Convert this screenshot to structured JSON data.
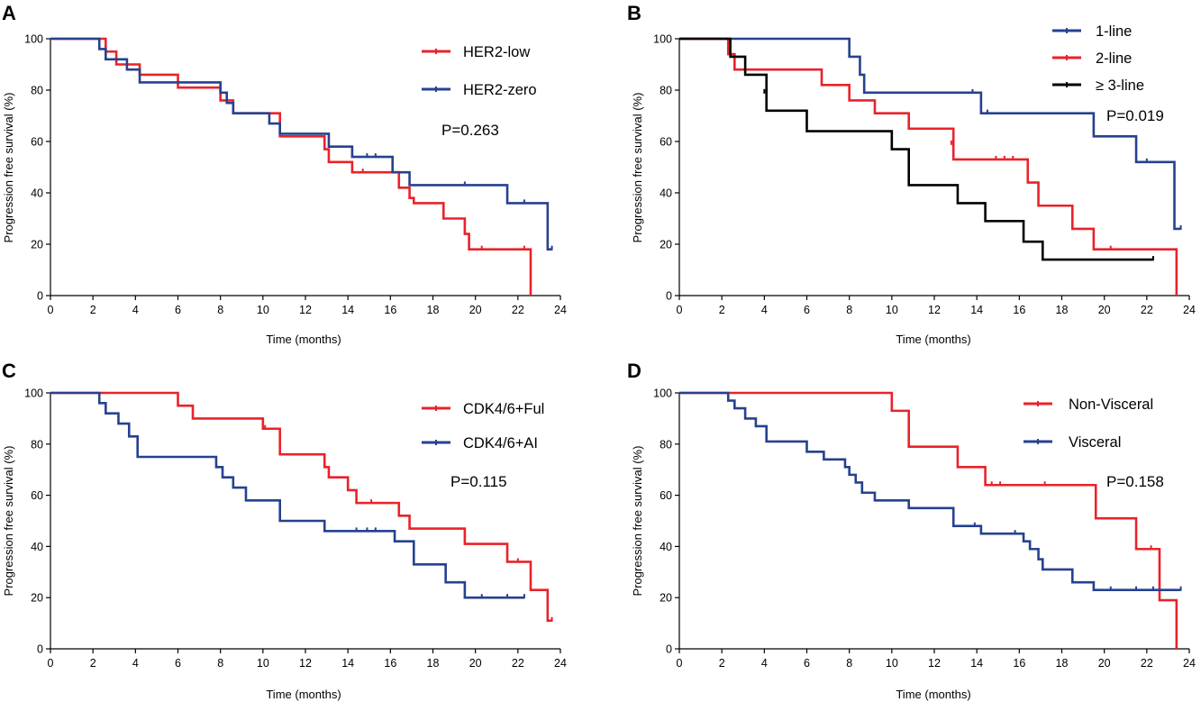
{
  "colors": {
    "red": "#e8232a",
    "blue": "#26418f",
    "black": "#000000"
  },
  "chart_data": [
    {
      "panel": "A",
      "type": "line",
      "xlabel": "Time (months)",
      "ylabel": "Progression free survival (%)",
      "xlim": [
        0,
        24
      ],
      "ylim": [
        0,
        100
      ],
      "xticks": [
        0,
        2,
        4,
        6,
        8,
        10,
        12,
        14,
        16,
        18,
        20,
        22,
        24
      ],
      "yticks": [
        0,
        20,
        40,
        60,
        80,
        100
      ],
      "pvalue": "P=0.263",
      "series": [
        {
          "name": "HER2-low",
          "color": "red",
          "x": [
            0,
            2.6,
            3.1,
            4.2,
            6.0,
            6.8,
            8.0,
            8.6,
            9.2,
            10.8,
            12.9,
            13.1,
            14.2,
            16.4,
            16.9,
            17.1,
            18.5,
            19.5,
            19.7,
            22.6
          ],
          "y": [
            100,
            95,
            90,
            86,
            81,
            81,
            76,
            71,
            71,
            62,
            57,
            52,
            48,
            42,
            38,
            36,
            30,
            24,
            18,
            0
          ],
          "censored": [
            [
              14.7,
              48
            ],
            [
              20.3,
              18
            ],
            [
              22.3,
              18
            ]
          ]
        },
        {
          "name": "HER2-zero",
          "color": "blue",
          "x": [
            0,
            2.3,
            2.6,
            3.6,
            4.2,
            7.8,
            8.0,
            8.3,
            8.6,
            10.3,
            10.8,
            13.1,
            14.2,
            16.1,
            16.9,
            21.5,
            23.4
          ],
          "y": [
            100,
            96,
            92,
            88,
            83,
            83,
            79,
            75,
            71,
            67,
            63,
            58,
            54,
            48,
            43,
            36,
            18
          ],
          "censored": [
            [
              14.9,
              54
            ],
            [
              15.3,
              54
            ],
            [
              19.5,
              43
            ],
            [
              22.3,
              36
            ],
            [
              23.6,
              18
            ]
          ]
        }
      ]
    },
    {
      "panel": "B",
      "type": "line",
      "xlabel": "Time (months)",
      "ylabel": "Progression free survival (%)",
      "xlim": [
        0,
        24
      ],
      "ylim": [
        0,
        100
      ],
      "xticks": [
        0,
        2,
        4,
        6,
        8,
        10,
        12,
        14,
        16,
        18,
        20,
        22,
        24
      ],
      "yticks": [
        0,
        20,
        40,
        60,
        80,
        100
      ],
      "pvalue": "P=0.019",
      "series": [
        {
          "name": "1-line",
          "color": "blue",
          "x": [
            0,
            8.0,
            8.5,
            8.7,
            14.2,
            19.5,
            21.5,
            22.6,
            23.3
          ],
          "y": [
            100,
            93,
            86,
            79,
            71,
            62,
            52,
            52,
            26
          ],
          "censored": [
            [
              13.8,
              79
            ],
            [
              14.5,
              71
            ],
            [
              22.0,
              52
            ],
            [
              23.6,
              26
            ]
          ]
        },
        {
          "name": "2-line",
          "color": "red",
          "x": [
            0,
            2.3,
            2.6,
            6.7,
            8.0,
            9.2,
            10.8,
            12.9,
            16.4,
            16.9,
            18.5,
            19.5,
            23.4
          ],
          "y": [
            100,
            94,
            88,
            82,
            76,
            71,
            65,
            53,
            44,
            35,
            26,
            18,
            0
          ],
          "censored": [
            [
              12.8,
              59
            ],
            [
              14.9,
              53
            ],
            [
              15.3,
              53
            ],
            [
              15.7,
              53
            ],
            [
              20.3,
              18
            ]
          ]
        },
        {
          "name": "≥ 3-line",
          "color": "black",
          "x": [
            0,
            2.4,
            2.6,
            3.1,
            4.1,
            6.0,
            10.0,
            10.8,
            13.1,
            14.4,
            16.2,
            17.1
          ],
          "y": [
            100,
            93,
            93,
            86,
            72,
            64,
            57,
            43,
            36,
            29,
            21,
            14
          ],
          "censored": [
            [
              4.0,
              79
            ],
            [
              22.3,
              14
            ]
          ]
        }
      ]
    },
    {
      "panel": "C",
      "type": "line",
      "xlabel": "Time (months)",
      "ylabel": "Progression free survival (%)",
      "xlim": [
        0,
        24
      ],
      "ylim": [
        0,
        100
      ],
      "xticks": [
        0,
        2,
        4,
        6,
        8,
        10,
        12,
        14,
        16,
        18,
        20,
        22,
        24
      ],
      "yticks": [
        0,
        20,
        40,
        60,
        80,
        100
      ],
      "pvalue": "P=0.115",
      "series": [
        {
          "name": "CDK4/6+Ful",
          "color": "red",
          "x": [
            0,
            6.0,
            6.7,
            10.0,
            10.8,
            12.9,
            13.1,
            14.0,
            14.4,
            16.4,
            16.9,
            19.5,
            21.5,
            22.6,
            23.4
          ],
          "y": [
            100,
            95,
            90,
            86,
            76,
            71,
            67,
            62,
            57,
            52,
            47,
            41,
            34,
            23,
            11
          ],
          "censored": [
            [
              10.1,
              86
            ],
            [
              15.1,
              57
            ],
            [
              22.0,
              34
            ],
            [
              23.6,
              11
            ]
          ]
        },
        {
          "name": "CDK4/6+AI",
          "color": "blue",
          "x": [
            0,
            2.3,
            2.6,
            3.2,
            3.7,
            4.1,
            7.8,
            8.1,
            8.6,
            9.2,
            10.8,
            12.9,
            16.2,
            17.1,
            18.6,
            19.5
          ],
          "y": [
            100,
            96,
            92,
            88,
            83,
            75,
            71,
            67,
            63,
            58,
            50,
            46,
            42,
            33,
            26,
            20
          ],
          "censored": [
            [
              14.4,
              46
            ],
            [
              14.9,
              46
            ],
            [
              15.3,
              46
            ],
            [
              20.3,
              20
            ],
            [
              21.5,
              20
            ],
            [
              22.3,
              20
            ]
          ]
        }
      ]
    },
    {
      "panel": "D",
      "type": "line",
      "xlabel": "Time (months)",
      "ylabel": "Progression free survival (%)",
      "xlim": [
        0,
        24
      ],
      "ylim": [
        0,
        100
      ],
      "xticks": [
        0,
        2,
        4,
        6,
        8,
        10,
        12,
        14,
        16,
        18,
        20,
        22,
        24
      ],
      "yticks": [
        0,
        20,
        40,
        60,
        80,
        100
      ],
      "pvalue": "P=0.158",
      "series": [
        {
          "name": "Non-Visceral",
          "color": "red",
          "x": [
            0,
            10.0,
            10.8,
            13.1,
            14.4,
            19.6,
            21.5,
            22.6,
            23.4
          ],
          "y": [
            100,
            93,
            79,
            71,
            64,
            51,
            39,
            19,
            0
          ],
          "censored": [
            [
              14.7,
              64
            ],
            [
              15.1,
              64
            ],
            [
              17.2,
              64
            ],
            [
              22.2,
              39
            ]
          ]
        },
        {
          "name": "Visceral",
          "color": "blue",
          "x": [
            0,
            2.3,
            2.6,
            3.1,
            3.6,
            4.1,
            6.0,
            6.8,
            7.8,
            8.0,
            8.3,
            8.6,
            9.2,
            10.8,
            12.9,
            14.2,
            16.2,
            16.5,
            16.9,
            17.1,
            18.5,
            19.5
          ],
          "y": [
            100,
            97,
            94,
            90,
            87,
            81,
            77,
            74,
            71,
            68,
            65,
            61,
            58,
            55,
            48,
            45,
            42,
            39,
            35,
            31,
            26,
            23
          ],
          "censored": [
            [
              13.9,
              48
            ],
            [
              15.8,
              45
            ],
            [
              20.3,
              23
            ],
            [
              21.5,
              23
            ],
            [
              22.3,
              23
            ],
            [
              23.6,
              23
            ]
          ]
        }
      ]
    }
  ]
}
